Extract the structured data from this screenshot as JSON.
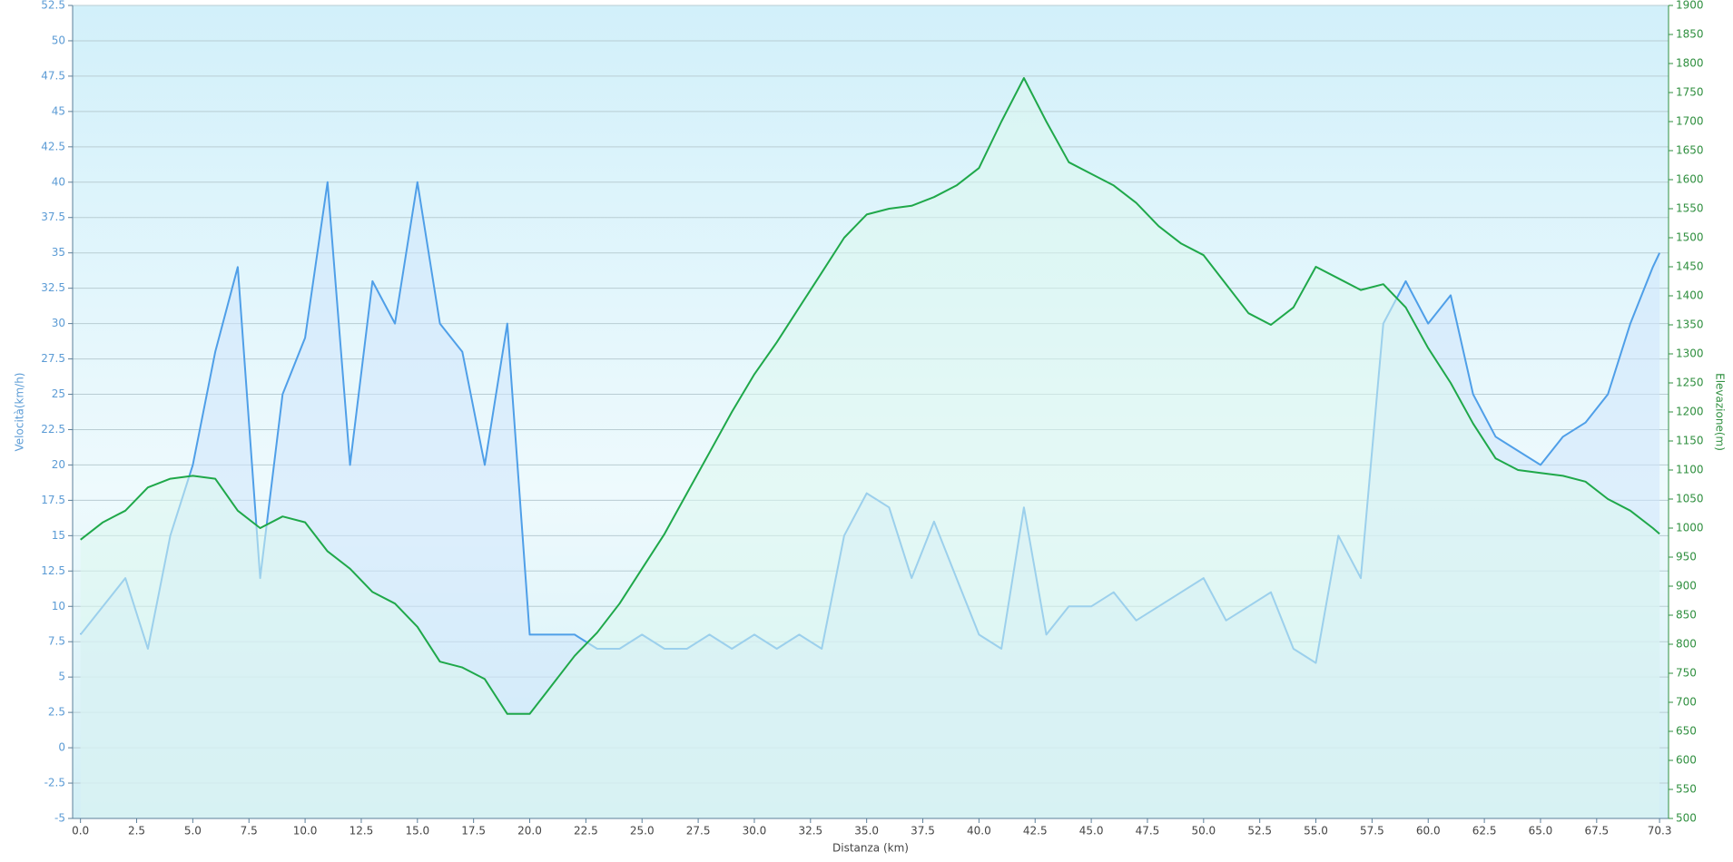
{
  "chart_data": {
    "type": "line",
    "xlabel": "Distanza  (km)",
    "ylabel": "Velocità(km/h)",
    "y2label": "Elevazione(m)",
    "x": [
      0,
      1,
      2,
      3,
      4,
      5,
      6,
      7,
      8,
      9,
      10,
      11,
      12,
      13,
      14,
      15,
      16,
      17,
      18,
      19,
      20,
      21,
      22,
      23,
      24,
      25,
      26,
      27,
      28,
      29,
      30,
      31,
      32,
      33,
      34,
      35,
      36,
      37,
      38,
      39,
      40,
      41,
      42,
      43,
      44,
      45,
      46,
      47,
      48,
      49,
      50,
      51,
      52,
      53,
      54,
      55,
      56,
      57,
      58,
      59,
      60,
      61,
      62,
      63,
      64,
      65,
      66,
      67,
      68,
      69,
      70,
      70.3
    ],
    "series": [
      {
        "color": "#4f9fe8",
        "fill": "#cfe6fb",
        "values": [
          8,
          10,
          12,
          7,
          15,
          20,
          28,
          34,
          12,
          25,
          29,
          40,
          20,
          33,
          30,
          40,
          30,
          28,
          20,
          30,
          8,
          8,
          8,
          7,
          7,
          8,
          7,
          7,
          8,
          7,
          8,
          7,
          8,
          7,
          15,
          18,
          17,
          12,
          16,
          12,
          8,
          7,
          17,
          8,
          10,
          10,
          11,
          9,
          10,
          11,
          12,
          9,
          10,
          11,
          7,
          6,
          15,
          12,
          30,
          33,
          30,
          32,
          25,
          22,
          21,
          20,
          22,
          23,
          25,
          30,
          34,
          35
        ]
      },
      {
        "color": "#1fa84a",
        "fill": "#dcf7ee",
        "axis": "y2",
        "values": [
          980,
          1010,
          1030,
          1070,
          1085,
          1090,
          1085,
          1030,
          1000,
          1020,
          1010,
          960,
          930,
          890,
          870,
          830,
          770,
          760,
          740,
          680,
          680,
          730,
          780,
          820,
          870,
          930,
          990,
          1060,
          1130,
          1200,
          1265,
          1320,
          1380,
          1440,
          1500,
          1540,
          1550,
          1555,
          1570,
          1590,
          1620,
          1700,
          1775,
          1700,
          1630,
          1610,
          1590,
          1560,
          1520,
          1490,
          1470,
          1420,
          1370,
          1350,
          1380,
          1450,
          1430,
          1410,
          1420,
          1380,
          1310,
          1250,
          1180,
          1120,
          1100,
          1095,
          1090,
          1080,
          1050,
          1030,
          1000,
          990
        ]
      }
    ],
    "xlim": [
      -0.35,
      70.7
    ],
    "xticks": [
      {
        "value": 0,
        "label": "0.0"
      },
      2.5,
      {
        "value": 5,
        "label": "5.0"
      },
      7.5,
      {
        "value": 10,
        "label": "10.0"
      },
      12.5,
      {
        "value": 15,
        "label": "15.0"
      },
      17.5,
      {
        "value": 20,
        "label": "20.0"
      },
      22.5,
      {
        "value": 25,
        "label": "25.0"
      },
      27.5,
      {
        "value": 30,
        "label": "30.0"
      },
      32.5,
      {
        "value": 35,
        "label": "35.0"
      },
      37.5,
      {
        "value": 40,
        "label": "40.0"
      },
      42.5,
      {
        "value": 45,
        "label": "45.0"
      },
      47.5,
      {
        "value": 50,
        "label": "50.0"
      },
      52.5,
      {
        "value": 55,
        "label": "55.0"
      },
      57.5,
      {
        "value": 60,
        "label": "60.0"
      },
      62.5,
      {
        "value": 65,
        "label": "65.0"
      },
      67.5,
      70.3
    ],
    "ylim": [
      -5,
      52.5
    ],
    "yticks": [
      -5,
      -2.5,
      0,
      2.5,
      5,
      7.5,
      10,
      12.5,
      15,
      17.5,
      20,
      22.5,
      25,
      27.5,
      30,
      32.5,
      35,
      37.5,
      40,
      42.5,
      45,
      47.5,
      50,
      52.5
    ],
    "y2lim": [
      500,
      1900
    ],
    "y2ticks": [
      500,
      550,
      600,
      650,
      700,
      750,
      800,
      850,
      900,
      950,
      1000,
      1050,
      1100,
      1150,
      1200,
      1250,
      1300,
      1350,
      1400,
      1450,
      1500,
      1550,
      1600,
      1650,
      1700,
      1750,
      1800,
      1850,
      1900
    ],
    "grid": true
  }
}
